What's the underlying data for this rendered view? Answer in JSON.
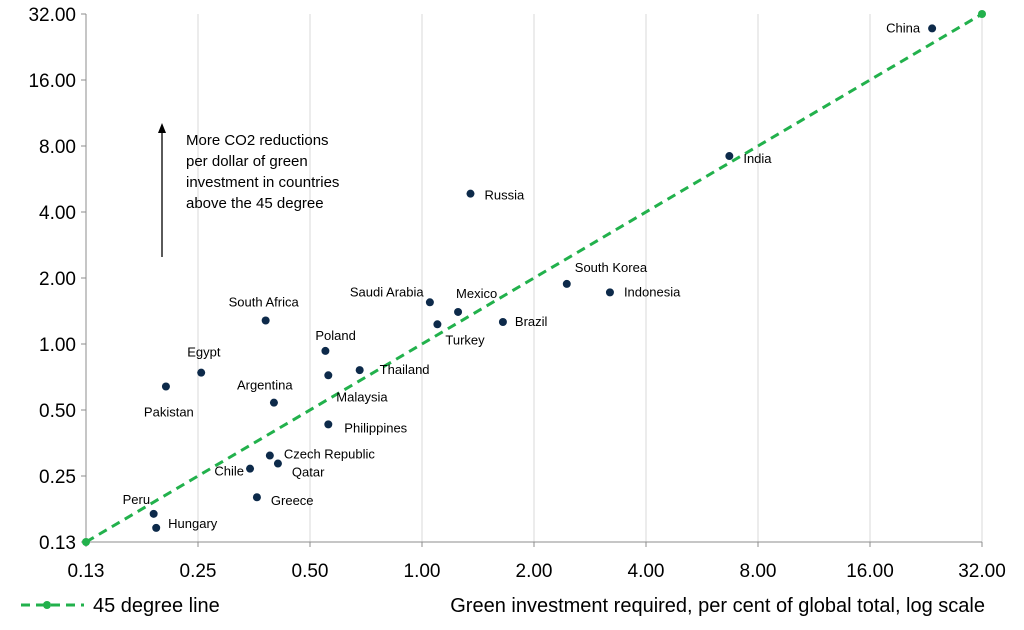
{
  "chart_data": {
    "type": "scatter",
    "x_scale": "log2",
    "y_scale": "log2",
    "xlim": [
      0.125,
      32
    ],
    "ylim": [
      0.125,
      32
    ],
    "x_ticks": [
      "0.13",
      "0.25",
      "0.50",
      "1.00",
      "2.00",
      "4.00",
      "8.00",
      "16.00",
      "32.00"
    ],
    "y_ticks": [
      "0.13",
      "0.25",
      "0.50",
      "1.00",
      "2.00",
      "4.00",
      "8.00",
      "16.00",
      "32.00"
    ],
    "grid": "vertical",
    "xlabel": "Green investment required, per cent of global total, log scale",
    "ylabel": "",
    "colors": {
      "points": "#0d2a4a",
      "line": "#22b14c",
      "grid": "#d9d9d9"
    },
    "annotation": [
      "More CO2 reductions",
      "per dollar of green",
      "investment in countries",
      "above the 45 degree"
    ],
    "series": [
      {
        "name": "45 degree line",
        "kind": "line",
        "points": [
          [
            0.125,
            0.125
          ],
          [
            32,
            32
          ]
        ]
      },
      {
        "kind": "scatter",
        "points": [
          {
            "label": "China",
            "x": 23.5,
            "y": 27.5
          },
          {
            "label": "India",
            "x": 6.7,
            "y": 7.2
          },
          {
            "label": "Russia",
            "x": 1.35,
            "y": 4.85
          },
          {
            "label": "South Korea",
            "x": 2.45,
            "y": 1.88
          },
          {
            "label": "Indonesia",
            "x": 3.2,
            "y": 1.72
          },
          {
            "label": "Mexico",
            "x": 1.25,
            "y": 1.4
          },
          {
            "label": "Saudi Arabia",
            "x": 1.05,
            "y": 1.55
          },
          {
            "label": "Brazil",
            "x": 1.65,
            "y": 1.26
          },
          {
            "label": "Turkey",
            "x": 1.1,
            "y": 1.23
          },
          {
            "label": "South Africa",
            "x": 0.38,
            "y": 1.28
          },
          {
            "label": "Poland",
            "x": 0.55,
            "y": 0.93
          },
          {
            "label": "Thailand",
            "x": 0.68,
            "y": 0.76
          },
          {
            "label": "Malaysia",
            "x": 0.56,
            "y": 0.72
          },
          {
            "label": "Egypt",
            "x": 0.255,
            "y": 0.74
          },
          {
            "label": "Pakistan",
            "x": 0.205,
            "y": 0.64
          },
          {
            "label": "Argentina",
            "x": 0.4,
            "y": 0.54
          },
          {
            "label": "Philippines",
            "x": 0.56,
            "y": 0.43
          },
          {
            "label": "Czech Republic",
            "x": 0.39,
            "y": 0.31
          },
          {
            "label": "Qatar",
            "x": 0.41,
            "y": 0.285
          },
          {
            "label": "Chile",
            "x": 0.345,
            "y": 0.27
          },
          {
            "label": "Greece",
            "x": 0.36,
            "y": 0.2
          },
          {
            "label": "Peru",
            "x": 0.19,
            "y": 0.168
          },
          {
            "label": "Hungary",
            "x": 0.193,
            "y": 0.145
          }
        ]
      }
    ],
    "legend": {
      "placement": "bottom-left",
      "entries": [
        "45 degree line"
      ]
    }
  }
}
